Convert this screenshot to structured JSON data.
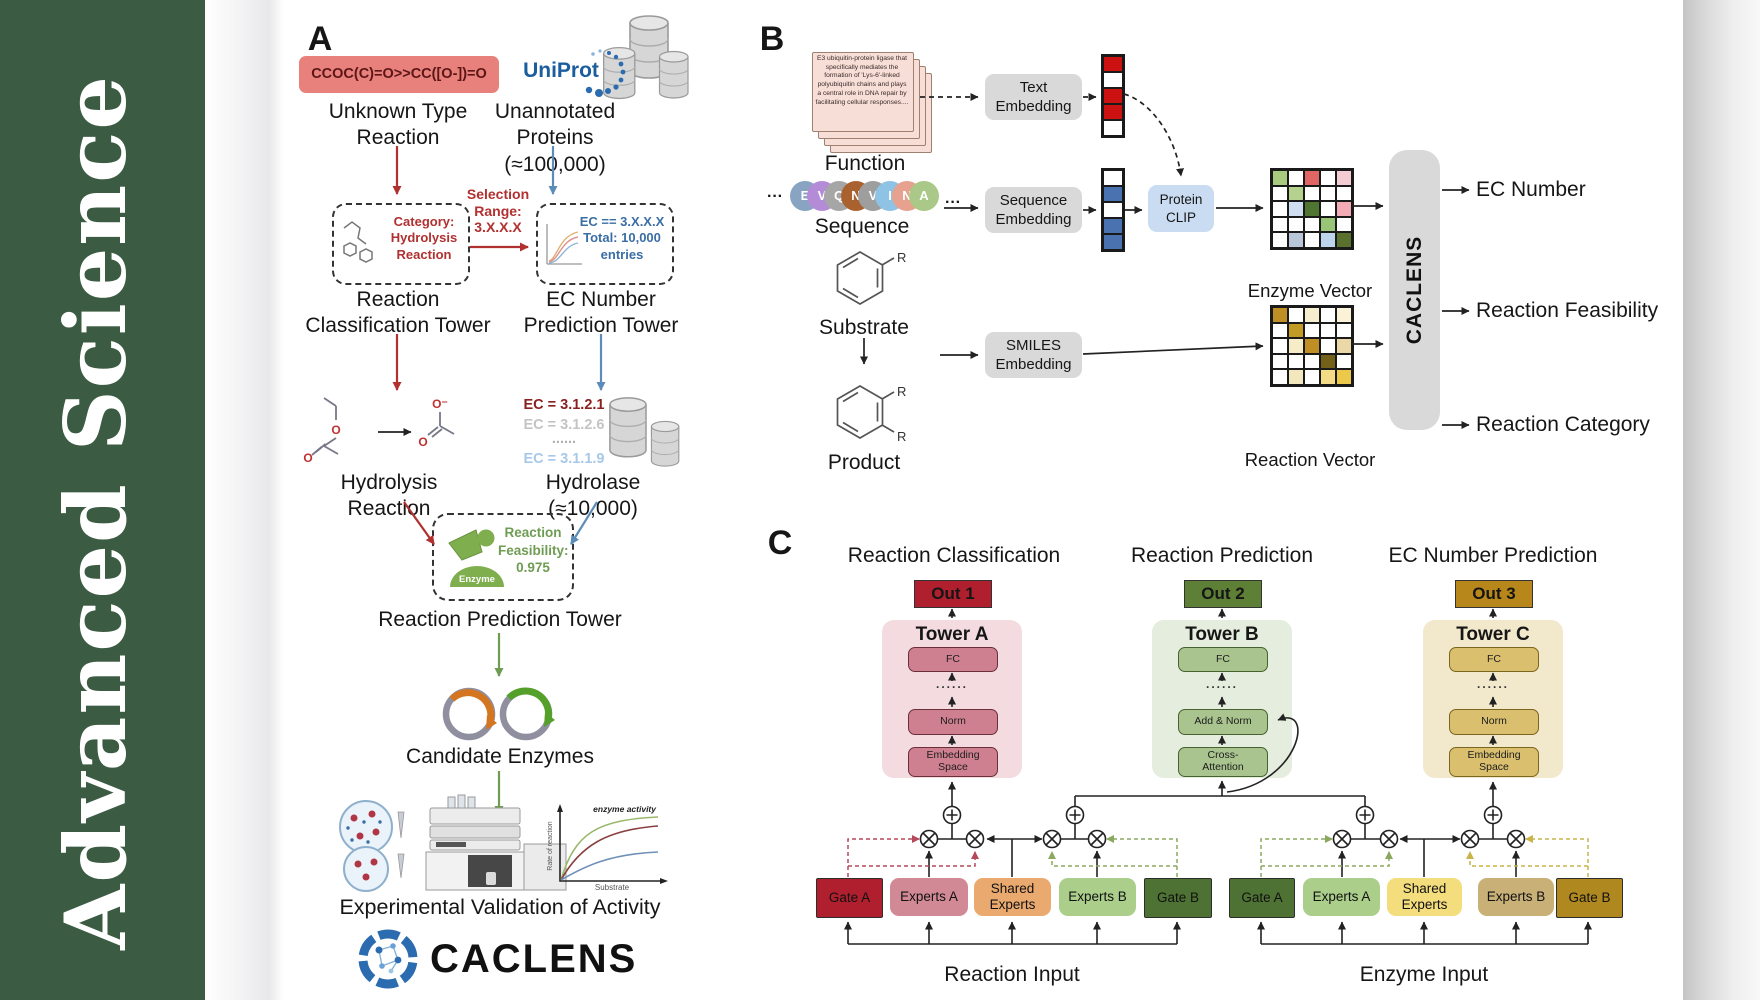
{
  "journal": {
    "brand": "Advanced  Science",
    "bg": "#3b5b42"
  },
  "panel_a": {
    "label": "A",
    "smiles": "CCOC(C)=O>>CC([O-])=O",
    "unknown": "Unknown Type\nReaction",
    "uniprot": "UniProt",
    "unannotated": "Unannotated\nProteins (≈100,000)",
    "selection": "Selection\nRange:\n3.X.X.X",
    "category": "Category:\nHydrolysis\nReaction",
    "ec_filter": "EC == 3.X.X.X\nTotal: 10,000\nentries",
    "tower_left": "Reaction\nClassification Tower",
    "tower_right": "EC Number\nPrediction Tower",
    "hydrolysis": "Hydrolysis Reaction",
    "ec_items": [
      "EC = 3.1.2.1",
      "EC = 3.1.2.6",
      "......",
      "EC = 3.1.1.9"
    ],
    "hydrolase": "Hydrolase (≈10,000)",
    "enzyme_badge": "Enzyme",
    "feasibility": "Reaction\nFeasibility:\n0.975",
    "tower_mid": "Reaction Prediction Tower",
    "candidates": "Candidate Enzymes",
    "validation": "Experimental Validation of Activity",
    "graph": {
      "ylabel": "Rate of reaction",
      "xlabel": "Substrate",
      "annotation": "enzyme activity"
    },
    "logo": "CACLENS",
    "accent_red": "#b13030",
    "accent_blue": "#5b8db8",
    "accent_green": "#6f9c53"
  },
  "panel_b": {
    "label": "B",
    "function_card": "E3 ubiquitin-protein ligase that specifically mediates the formation of 'Lys-6'-linked polyubiquitin chains and plays a central role in DNA repair by facilitating cellular responses....",
    "function": "Function",
    "ellipsis": "···",
    "sequence": "Sequence",
    "seq": [
      {
        "letter": "E",
        "color": "#88a4c2"
      },
      {
        "letter": "V",
        "color": "#b48bd6"
      },
      {
        "letter": "Q",
        "color": "#a6a6a6"
      },
      {
        "letter": "N",
        "color": "#a9622f"
      },
      {
        "letter": "V",
        "color": "#9e9e9e"
      },
      {
        "letter": "I",
        "color": "#8ec3e6"
      },
      {
        "letter": "N",
        "color": "#e6a28e"
      },
      {
        "letter": "A",
        "color": "#aac887"
      }
    ],
    "substrate": "Substrate",
    "product": "Product",
    "r_label": "R",
    "text_embedding": "Text\nEmbedding",
    "sequence_embedding": "Sequence\nEmbedding",
    "smiles_embedding": "SMILES\nEmbedding",
    "protein_clip": "Protein\nCLIP",
    "text_vector": [
      [
        "#cc1111"
      ],
      [
        "#ffffff"
      ],
      [
        "#cc1111"
      ],
      [
        "#cc1111"
      ],
      [
        "#ffffff"
      ]
    ],
    "sequence_vector": [
      [
        "#ffffff"
      ],
      [
        "#4a72b0"
      ],
      [
        "#ffffff"
      ],
      [
        "#4a72b0"
      ],
      [
        "#4a72b0"
      ]
    ],
    "enzyme_grid": [
      [
        "#a9cb7e",
        "#ffffff",
        "#e06666",
        "#ffffff",
        "#f4cdd3"
      ],
      [
        "#ffffff",
        "#b4d18d",
        "#ffffff",
        "#ffffff",
        "#ffffff"
      ],
      [
        "#ffffff",
        "#cfdff1",
        "#4f7631",
        "#ffffff",
        "#f2aab4"
      ],
      [
        "#ffffff",
        "#ffffff",
        "#ffffff",
        "#98c578",
        "#ffffff"
      ],
      [
        "#ffffff",
        "#b9c6d8",
        "#ffffff",
        "#bcd4ec",
        "#5a702e"
      ]
    ],
    "reaction_grid": [
      [
        "#bf8f25",
        "#ffffff",
        "#f6efcf",
        "#ffffff",
        "#faf3d8"
      ],
      [
        "#ffffff",
        "#c29b24",
        "#ffffff",
        "#ffffff",
        "#ffffff"
      ],
      [
        "#ffffff",
        "#f6edc8",
        "#bf8f25",
        "#ffffff",
        "#ead9a6"
      ],
      [
        "#ffffff",
        "#ffffff",
        "#ffffff",
        "#73611a",
        "#ffffff"
      ],
      [
        "#ffffff",
        "#f2e7bd",
        "#ffffff",
        "#f3dc85",
        "#ecc84b"
      ]
    ],
    "enzyme_vector": "Enzyme Vector",
    "reaction_vector": "Reaction Vector",
    "caclens_bar": "CACLENS",
    "outputs": [
      "EC Number",
      "Reaction Feasibility",
      "Reaction Category"
    ]
  },
  "panel_c": {
    "label": "C",
    "headers": [
      "Reaction Classification",
      "Reaction Prediction",
      "EC Number Prediction"
    ],
    "outs": [
      {
        "label": "Out 1",
        "bg": "#b01f2e"
      },
      {
        "label": "Out 2",
        "bg": "#5d8036"
      },
      {
        "label": "Out 3",
        "bg": "#b8871b"
      }
    ],
    "towers": [
      {
        "title": "Tower A",
        "bg": "#f3dbe0",
        "box_bg": "#cf8090",
        "box_border": "#6b2f3a",
        "fc": "FC",
        "dots": "......",
        "mid": "Norm",
        "bottom": "Embedding\nSpace"
      },
      {
        "title": "Tower B",
        "bg": "#e5edde",
        "box_bg": "#a9c48e",
        "box_border": "#46622f",
        "fc": "FC",
        "dots": "......",
        "mid": "Add & Norm",
        "bottom": "Cross-\nAttention"
      },
      {
        "title": "Tower C",
        "bg": "#f2e8cc",
        "box_bg": "#d9bf6e",
        "box_border": "#7a661f",
        "fc": "FC",
        "dots": "......",
        "mid": "Norm",
        "bottom": "Embedding\nSpace"
      }
    ],
    "moe": [
      {
        "label": "Gate A",
        "bg": "#b01f2e"
      },
      {
        "label": "Experts A",
        "bg": "#d08995"
      },
      {
        "label": "Shared\nExperts",
        "bg": "#eaa96e"
      },
      {
        "label": "Experts B",
        "bg": "#abce8b"
      },
      {
        "label": "Gate B",
        "bg": "#4e7233"
      },
      {
        "label": "Gate A",
        "bg": "#4e7233"
      },
      {
        "label": "Experts A",
        "bg": "#abce8b"
      },
      {
        "label": "Shared\nExperts",
        "bg": "#f3dd7d"
      },
      {
        "label": "Experts B",
        "bg": "#c9b077"
      },
      {
        "label": "Gate B",
        "bg": "#b08820"
      }
    ],
    "inputs": [
      "Reaction Input",
      "Enzyme Input"
    ],
    "dash_red": "#b5485a",
    "dash_green": "#8aa85e",
    "dash_gold": "#c9b44a"
  }
}
